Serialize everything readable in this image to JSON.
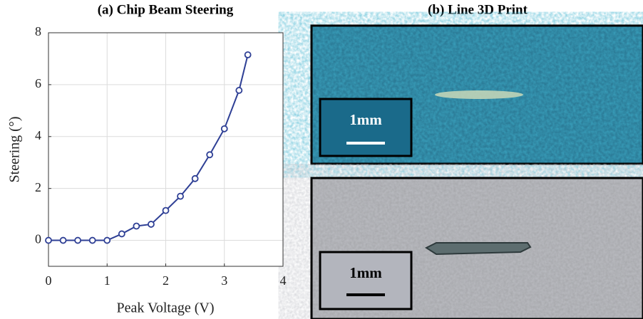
{
  "chart_data": {
    "type": "line",
    "title": "(a) Chip Beam Steering",
    "xlabel": "Peak Voltage (V)",
    "ylabel": "Steering (°)",
    "x": [
      0,
      0.25,
      0.5,
      0.75,
      1,
      1.25,
      1.5,
      1.75,
      2,
      2.25,
      2.5,
      2.75,
      3,
      3.25,
      3.4
    ],
    "series": [
      {
        "color": "#2e3f95",
        "values": [
          0,
          0,
          0,
          0,
          0,
          0.25,
          0.55,
          0.62,
          1.15,
          1.7,
          2.38,
          3.3,
          4.3,
          5.78,
          7.15
        ]
      }
    ],
    "xlim": [
      0,
      4
    ],
    "xticks": [
      0,
      1,
      2,
      3,
      4
    ],
    "ylim": [
      -1,
      8
    ],
    "yticks": [
      0,
      2,
      4,
      6,
      8
    ],
    "grid": true
  },
  "panel_b": {
    "title": "(b) Line 3D Print",
    "scale_labels": [
      "1mm",
      "1mm"
    ]
  }
}
